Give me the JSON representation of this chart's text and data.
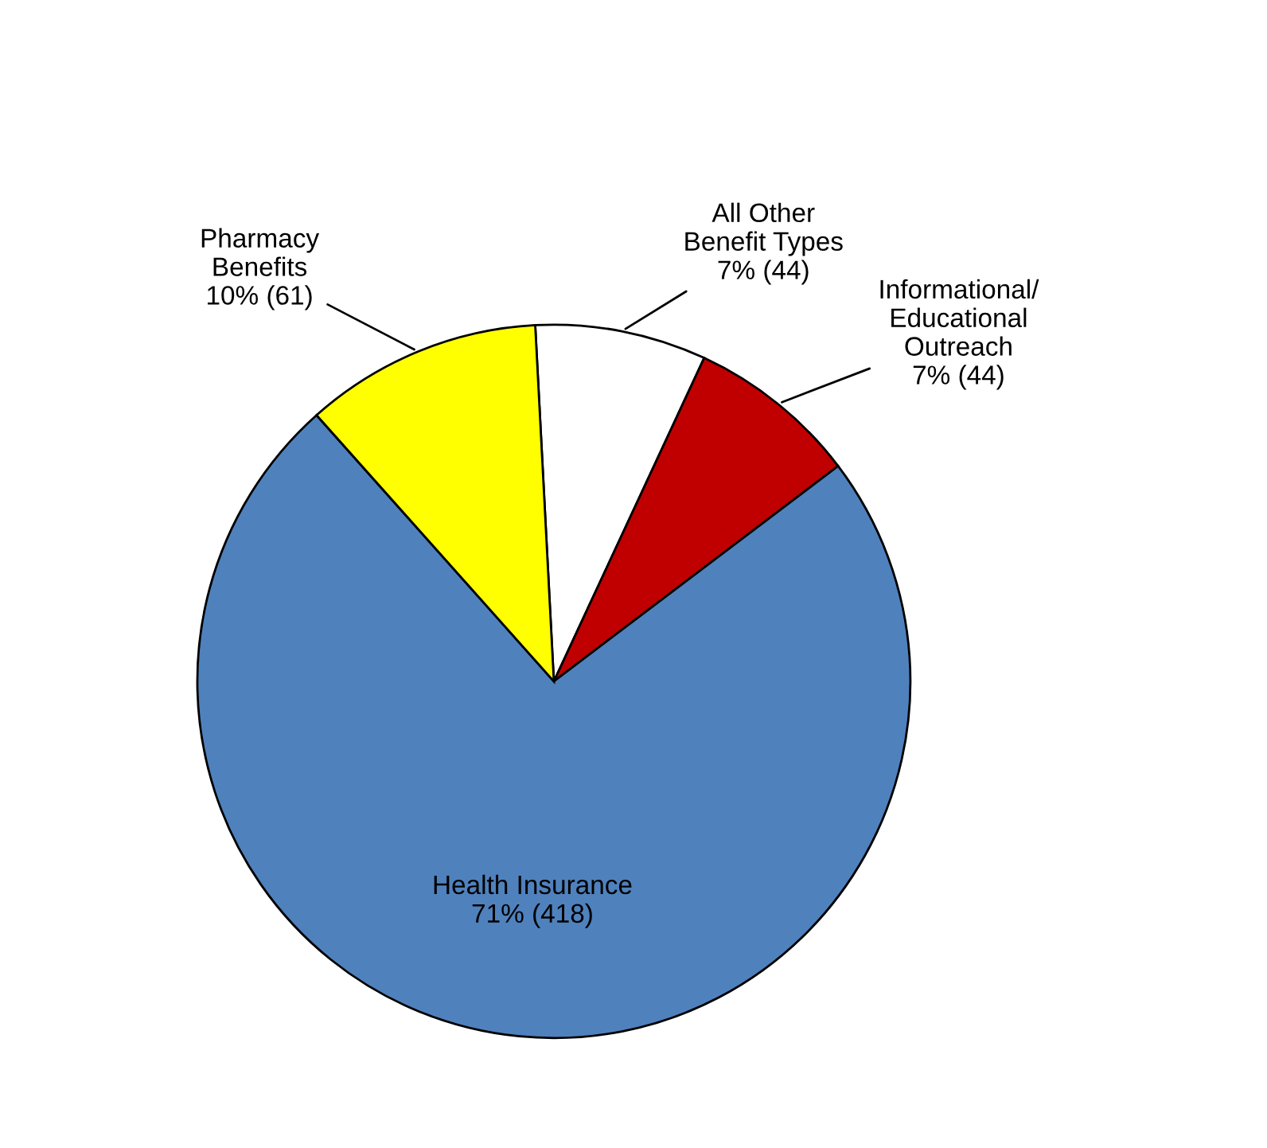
{
  "chart_data": {
    "type": "pie",
    "categories": [
      "All Other\nBenefit Types",
      "Informational/\nEducational\nOutreach",
      "Health Insurance",
      "Pharmacy\nBenefits"
    ],
    "values": [
      44,
      44,
      418,
      61
    ],
    "colors": [
      "#ffffff",
      "#c00000",
      "#4f81bd",
      "#ffff00"
    ],
    "value_labels": [
      "7% (44)",
      "7% (44)",
      "71% (418)",
      "10% (61)"
    ],
    "legend": false
  }
}
